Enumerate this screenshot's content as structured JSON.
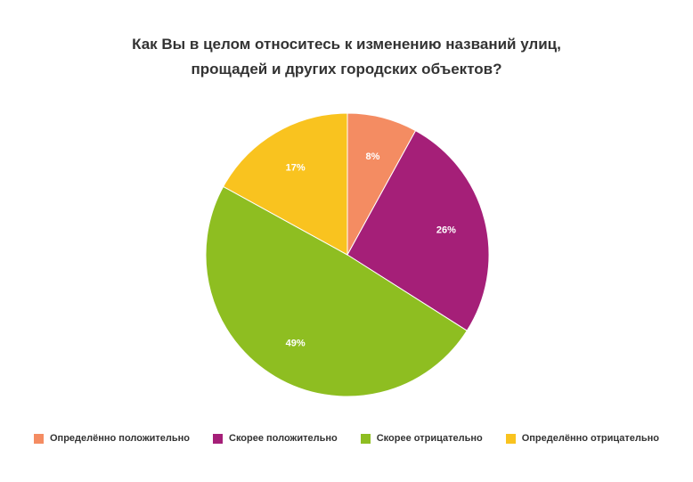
{
  "chart_data": {
    "type": "pie",
    "title_lines": [
      "Как Вы в целом относитесь к изменению названий улиц,",
      "прощадей и других городских объектов?"
    ],
    "slices": [
      {
        "label": "Определённо положительно",
        "value": 8,
        "display": "8%",
        "color": "#F48C62"
      },
      {
        "label": "Скорее положительно",
        "value": 26,
        "display": "26%",
        "color": "#A51F78"
      },
      {
        "label": "Скорее отрицательно",
        "value": 49,
        "display": "49%",
        "color": "#8EBE21"
      },
      {
        "label": "Определённо отрицательно",
        "value": 17,
        "display": "17%",
        "color": "#F9C31F"
      }
    ],
    "legend_position": "bottom",
    "start_angle_deg": 0,
    "direction": "clockwise"
  }
}
